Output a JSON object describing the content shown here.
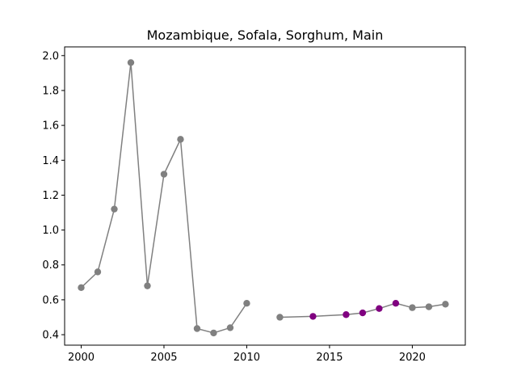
{
  "chart_data": {
    "type": "line",
    "title": "Mozambique, Sofala, Sorghum, Main",
    "xlabel": "",
    "ylabel": "",
    "xlim": [
      1999,
      2023.2
    ],
    "ylim": [
      0.34,
      2.05
    ],
    "xticks": [
      2000,
      2005,
      2010,
      2015,
      2020
    ],
    "yticks": [
      0.4,
      0.6,
      0.8,
      1.0,
      1.2,
      1.4,
      1.6,
      1.8,
      2.0
    ],
    "ytick_labels": [
      "0.4",
      "0.6",
      "0.8",
      "1.0",
      "1.2",
      "1.4",
      "1.6",
      "1.8",
      "2.0"
    ],
    "grid": false,
    "line_color": "#808080",
    "default_marker_color": "#808080",
    "highlight_marker_color": "#800080",
    "series": [
      {
        "segments": [
          [
            {
              "x": 2000,
              "y": 0.67,
              "highlight": false
            },
            {
              "x": 2001,
              "y": 0.76,
              "highlight": false
            },
            {
              "x": 2002,
              "y": 1.12,
              "highlight": false
            },
            {
              "x": 2003,
              "y": 1.96,
              "highlight": false
            },
            {
              "x": 2004,
              "y": 0.68,
              "highlight": false
            },
            {
              "x": 2005,
              "y": 1.32,
              "highlight": false
            },
            {
              "x": 2006,
              "y": 1.52,
              "highlight": false
            },
            {
              "x": 2007,
              "y": 0.435,
              "highlight": false
            },
            {
              "x": 2008,
              "y": 0.41,
              "highlight": false
            },
            {
              "x": 2009,
              "y": 0.44,
              "highlight": false
            },
            {
              "x": 2010,
              "y": 0.58,
              "highlight": false
            }
          ],
          [
            {
              "x": 2012,
              "y": 0.5,
              "highlight": false
            },
            {
              "x": 2014,
              "y": 0.505,
              "highlight": true
            },
            {
              "x": 2016,
              "y": 0.515,
              "highlight": true
            },
            {
              "x": 2017,
              "y": 0.525,
              "highlight": true
            },
            {
              "x": 2018,
              "y": 0.55,
              "highlight": true
            },
            {
              "x": 2019,
              "y": 0.58,
              "highlight": true
            },
            {
              "x": 2020,
              "y": 0.555,
              "highlight": false
            },
            {
              "x": 2021,
              "y": 0.56,
              "highlight": false
            },
            {
              "x": 2022,
              "y": 0.575,
              "highlight": false
            }
          ]
        ]
      }
    ]
  }
}
